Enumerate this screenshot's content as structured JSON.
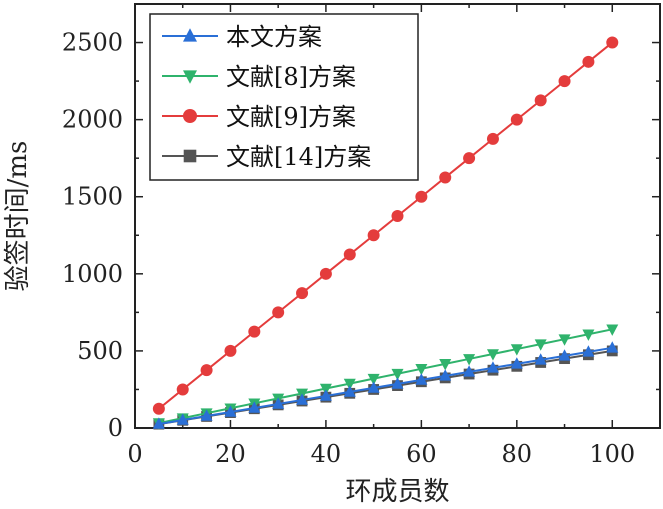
{
  "chart_data": {
    "type": "line",
    "xlabel": "环成员数",
    "ylabel": "验签时间/ms",
    "xlim": [
      0,
      110
    ],
    "ylim": [
      0,
      2750
    ],
    "xticks": [
      0,
      20,
      40,
      60,
      80,
      100
    ],
    "yticks": [
      0,
      500,
      1000,
      1500,
      2000,
      2500
    ],
    "legend_position": "top-left",
    "grid": false,
    "x": [
      5,
      10,
      15,
      20,
      25,
      30,
      35,
      40,
      45,
      50,
      55,
      60,
      65,
      70,
      75,
      80,
      85,
      90,
      95,
      100
    ],
    "series": [
      {
        "name": "本文方案",
        "color": "#2a6fd6",
        "marker": "triangle-up",
        "values": [
          26,
          52,
          78,
          104,
          130,
          156,
          182,
          208,
          234,
          260,
          286,
          312,
          338,
          364,
          390,
          416,
          442,
          468,
          494,
          520
        ]
      },
      {
        "name": "文献[8]方案",
        "color": "#2fb36c",
        "marker": "triangle-down",
        "values": [
          32,
          64,
          96,
          128,
          160,
          192,
          224,
          256,
          288,
          320,
          352,
          384,
          416,
          448,
          480,
          512,
          544,
          576,
          608,
          640
        ]
      },
      {
        "name": "文献[9]方案",
        "color": "#e43c3c",
        "marker": "circle",
        "values": [
          125,
          250,
          375,
          500,
          625,
          750,
          875,
          1000,
          1125,
          1250,
          1375,
          1500,
          1625,
          1750,
          1875,
          2000,
          2125,
          2250,
          2375,
          2500
        ]
      },
      {
        "name": "文献[14]方案",
        "color": "#555555",
        "marker": "square",
        "values": [
          25,
          50,
          75,
          100,
          125,
          150,
          175,
          200,
          225,
          250,
          275,
          300,
          325,
          350,
          375,
          400,
          425,
          450,
          475,
          500
        ]
      }
    ]
  }
}
